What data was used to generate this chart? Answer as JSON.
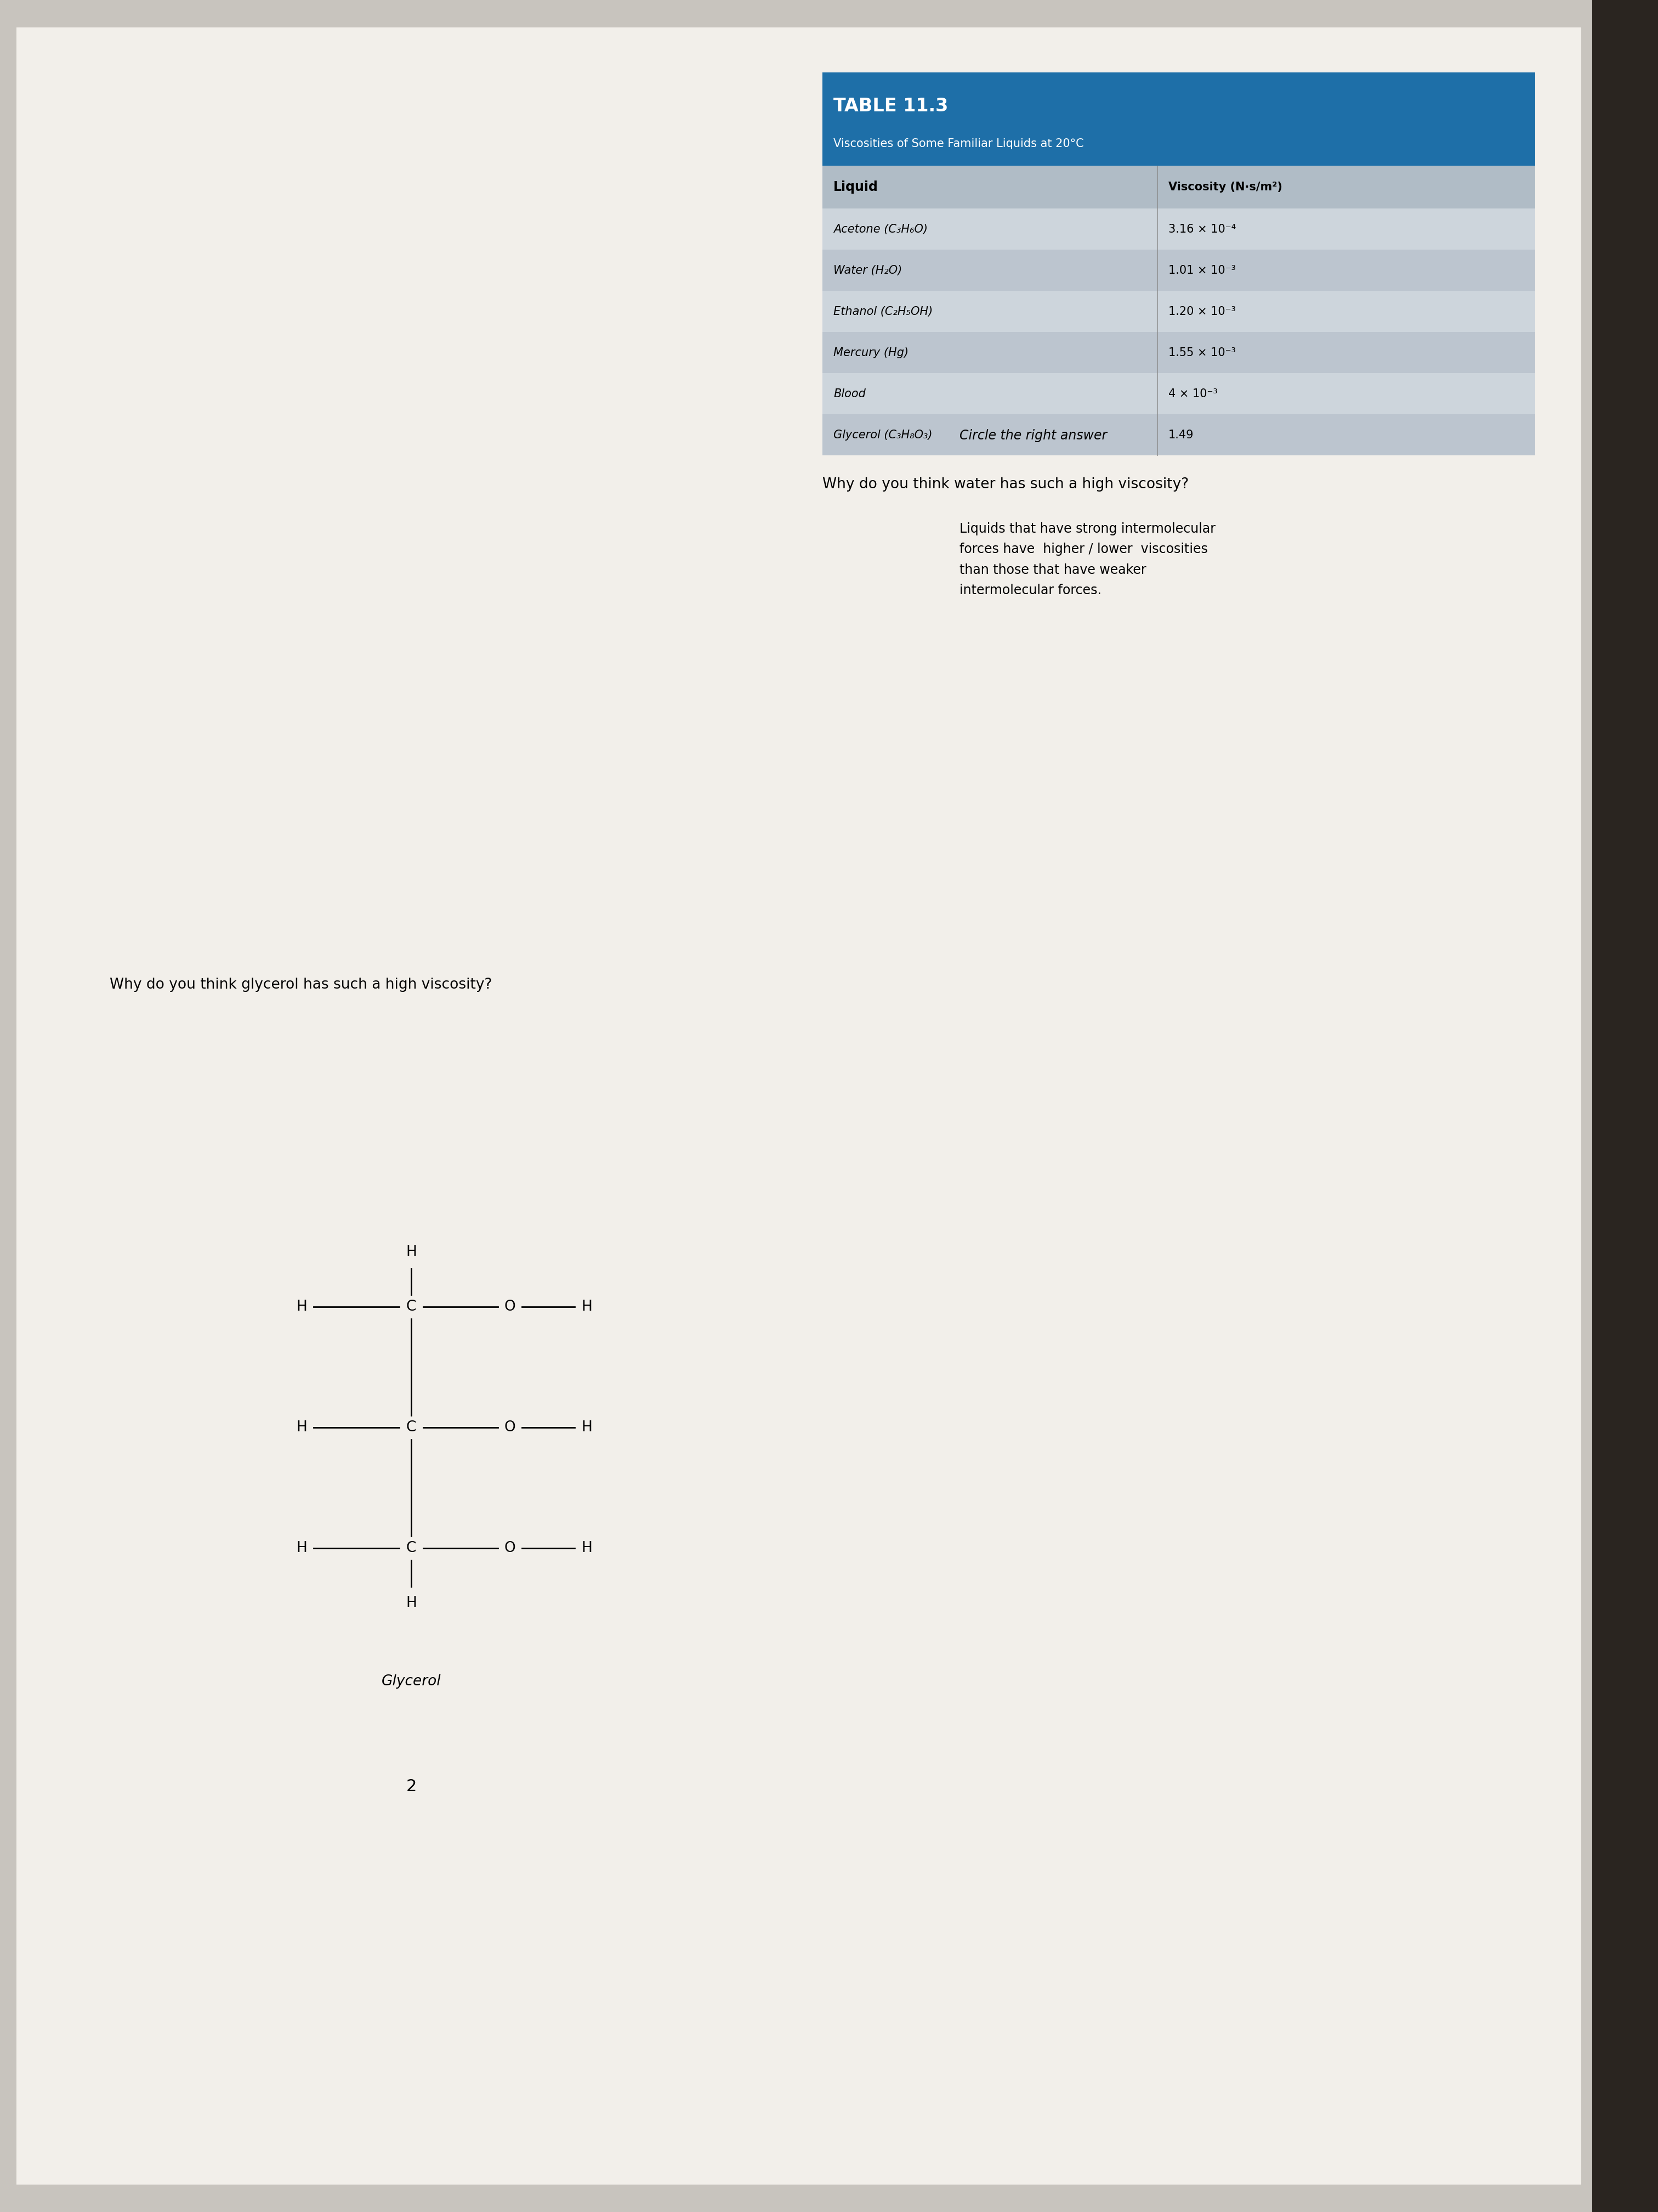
{
  "title": "TABLE 11.3",
  "subtitle": "Viscosities of Some Familiar Liquids at 20°C",
  "col1_header": "Liquid",
  "col2_header": "Viscosity (N·s/m²)",
  "rows": [
    [
      "Acetone (C₃H₆O)",
      "3.16 × 10⁻⁴"
    ],
    [
      "Water (H₂O)",
      "1.01 × 10⁻³"
    ],
    [
      "Ethanol (C₂H₅OH)",
      "1.20 × 10⁻³"
    ],
    [
      "Mercury (Hg)",
      "1.55 × 10⁻³"
    ],
    [
      "Blood",
      "4 × 10⁻³"
    ],
    [
      "Glycerol (C₃H₈O₃)",
      "1.49"
    ]
  ],
  "circle_text": "Circle the right answer",
  "question_text": "Liquids that have strong intermolecular\nforces have  higher / lower  viscosities\nthan those that have weaker\nintermolecular forces.",
  "q1": "Why do you think water has such a high viscosity?",
  "q2": "Why do you think glycerol has such a high viscosity?",
  "glycerol_label": "Glycerol",
  "page_num": "2",
  "bg_color": "#c8c4be",
  "paper_color": "#f2efea",
  "table_header_bg": "#1e6fa8",
  "table_row_bg1": "#cdd5dc",
  "table_row_bg2": "#bcc5cf",
  "col_header_bg": "#b0bcc6"
}
